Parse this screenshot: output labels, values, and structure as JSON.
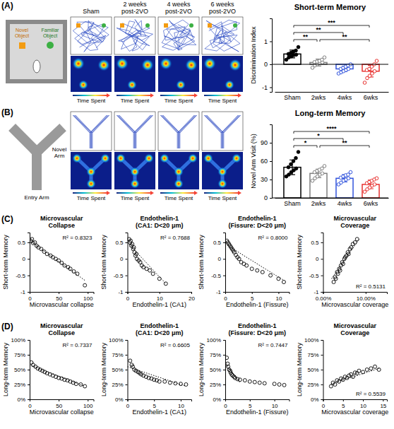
{
  "figure": {
    "panel_labels": [
      "(A)",
      "(B)",
      "(C)",
      "(D)"
    ],
    "groups": [
      "Sham",
      "2 weeks post-2VO",
      "4 weeks post-2VO",
      "6 weeks post-2VO"
    ],
    "time_spent": "Time Spent",
    "novel_object": "Novel Object",
    "familiar_object": "Familiar Object",
    "entry_arm": "Entry Arm",
    "novel_arm": "Novel Arm"
  },
  "chart_data": [
    {
      "type": "bar",
      "title": "Short-term Memory",
      "y_label": "Discrimination Index",
      "categories": [
        "Sham",
        "2wks",
        "4wks",
        "6wks"
      ],
      "values": [
        0.45,
        0.08,
        -0.2,
        -0.3
      ],
      "errors": [
        0.17,
        0.15,
        0.12,
        0.25
      ],
      "points": [
        [
          0.2,
          0.3,
          0.35,
          0.4,
          0.42,
          0.45,
          0.5,
          0.55,
          0.6,
          0.75
        ],
        [
          -0.15,
          -0.05,
          0,
          0.05,
          0.08,
          0.1,
          0.12,
          0.15,
          0.2,
          0.3
        ],
        [
          -0.4,
          -0.35,
          -0.3,
          -0.25,
          -0.2,
          -0.2,
          -0.15,
          -0.1,
          -0.05,
          0
        ],
        [
          -0.8,
          -0.6,
          -0.5,
          -0.4,
          -0.3,
          -0.25,
          -0.2,
          -0.1,
          0,
          0.15
        ]
      ],
      "colors": [
        "#000000",
        "#7f7f7f",
        "#3355dd",
        "#e8312f"
      ],
      "ylim": [
        -1.2,
        2.0
      ],
      "yticks": [
        -1,
        0,
        1
      ],
      "comparisons": [
        {
          "groups": [
            "Sham",
            "2wks"
          ],
          "label": "**"
        },
        {
          "groups": [
            "Sham",
            "4wks"
          ],
          "label": "**"
        },
        {
          "groups": [
            "Sham",
            "6wks"
          ],
          "label": "***"
        },
        {
          "groups": [
            "2wks",
            "6wks"
          ],
          "label": "**"
        }
      ]
    },
    {
      "type": "bar",
      "title": "Long-term Memory",
      "y_label": "Novel Arm Visit (%)",
      "categories": [
        "Sham",
        "2wks",
        "4wks",
        "6wks"
      ],
      "values": [
        50,
        40,
        32,
        22
      ],
      "errors": [
        12,
        7,
        6,
        7
      ],
      "points": [
        [
          35,
          38,
          42,
          45,
          48,
          50,
          55,
          60,
          65,
          75
        ],
        [
          28,
          32,
          35,
          38,
          40,
          42,
          44,
          46,
          48,
          52
        ],
        [
          22,
          25,
          28,
          30,
          32,
          33,
          35,
          37,
          38,
          42
        ],
        [
          10,
          14,
          17,
          20,
          22,
          24,
          26,
          28,
          30,
          32
        ]
      ],
      "colors": [
        "#000000",
        "#7f7f7f",
        "#3355dd",
        "#e8312f"
      ],
      "ylim": [
        0,
        120
      ],
      "yticks": [
        0,
        30,
        60,
        90
      ],
      "comparisons": [
        {
          "groups": [
            "Sham",
            "2wks"
          ],
          "label": "*"
        },
        {
          "groups": [
            "Sham",
            "4wks"
          ],
          "label": "*"
        },
        {
          "groups": [
            "Sham",
            "6wks"
          ],
          "label": "****"
        },
        {
          "groups": [
            "2wks",
            "6wks"
          ],
          "label": "**"
        }
      ]
    },
    {
      "type": "scatter",
      "title": "Microvascular Collapse",
      "x_label": "Microvascular collapse",
      "y_label": "Short-term Memory",
      "x": [
        2,
        4,
        6,
        9,
        12,
        15,
        20,
        25,
        30,
        36,
        40,
        45,
        50,
        55,
        60,
        66,
        70,
        76,
        82,
        95
      ],
      "y": [
        0.55,
        0.6,
        0.48,
        0.5,
        0.4,
        0.35,
        0.3,
        0.22,
        0.15,
        0.1,
        0.05,
        0,
        -0.05,
        -0.12,
        -0.2,
        -0.25,
        -0.3,
        -0.38,
        -0.45,
        -0.8
      ],
      "xlim": [
        0,
        110
      ],
      "xticks": [
        0,
        50,
        100
      ],
      "ylim": [
        -1,
        0.8
      ],
      "yticks": [
        -1,
        -0.5,
        0,
        0.5
      ],
      "annotation": "R² = 0.8323",
      "trend": {
        "x": [
          0,
          95
        ],
        "y": [
          0.55,
          -0.65
        ]
      },
      "marker": "circle",
      "line_style": "dotted"
    },
    {
      "type": "scatter",
      "title": "Endothelin-1 (CA1: D<20 μm)",
      "x_label": "Endothelin-1 (CA1)",
      "y_label": "Short-term Memory",
      "x": [
        0.5,
        0.8,
        1,
        1.2,
        1.5,
        1.8,
        2,
        2.2,
        2.5,
        2.8,
        3,
        3.5,
        4,
        4.5,
        5,
        6,
        7,
        8,
        10,
        12
      ],
      "y": [
        0.6,
        0.5,
        0.55,
        0.4,
        0.45,
        0.3,
        0.35,
        0.2,
        0.1,
        0.15,
        0,
        -0.05,
        -0.1,
        -0.2,
        -0.25,
        -0.3,
        -0.35,
        -0.45,
        -0.6,
        -0.75
      ],
      "xlim": [
        0,
        20
      ],
      "xticks": [
        0,
        10,
        20
      ],
      "ylim": [
        -1,
        0.8
      ],
      "yticks": [
        -1,
        -0.5,
        0,
        0.5
      ],
      "annotation": "R² = 0.7688",
      "trend": {
        "x": [
          0,
          12
        ],
        "y": [
          0.5,
          -0.75
        ]
      },
      "marker": "circle",
      "line_style": "dotted"
    },
    {
      "type": "scatter",
      "title": "Endothelin-1 (Fissure: D<20 μm)",
      "x_label": "Endothelin-1 (Fissure)",
      "y_label": "Short-term Memory",
      "x": [
        0.3,
        0.5,
        0.7,
        0.9,
        1.1,
        1.3,
        1.5,
        1.7,
        2,
        2.3,
        2.6,
        3,
        3.5,
        4,
        5,
        6,
        7,
        8.5,
        10,
        11
      ],
      "y": [
        0.55,
        0.5,
        0.45,
        0.4,
        0.35,
        0.3,
        0.25,
        0.2,
        0.12,
        0.05,
        0,
        -0.1,
        -0.15,
        -0.2,
        -0.3,
        -0.35,
        -0.4,
        -0.5,
        -0.6,
        -0.7
      ],
      "xlim": [
        0,
        12
      ],
      "xticks": [
        0,
        5,
        10
      ],
      "ylim": [
        -1,
        0.8
      ],
      "yticks": [
        -1,
        -0.5,
        0,
        0.5
      ],
      "annotation": "R² = 0.8000",
      "trend": {
        "x": [
          0,
          11
        ],
        "y": [
          0.45,
          -0.65
        ]
      },
      "marker": "circle",
      "line_style": "dotted"
    },
    {
      "type": "scatter",
      "title": "Microvascular Coverage",
      "x_label": "Microvascular coverage",
      "y_label": "Short-term Memory",
      "x": [
        2.5,
        2.8,
        3,
        3.3,
        3.5,
        3.8,
        4,
        4.2,
        4.5,
        4.7,
        5,
        5.2,
        5.5,
        5.8,
        6,
        6.3,
        6.6,
        7,
        7.5,
        8
      ],
      "y": [
        -0.7,
        -0.55,
        -0.6,
        -0.4,
        -0.45,
        -0.3,
        -0.35,
        -0.2,
        -0.1,
        -0.15,
        0,
        0.05,
        0.1,
        0.2,
        0.15,
        0.3,
        0.35,
        0.45,
        0.5,
        0.6
      ],
      "xlim": [
        0,
        15
      ],
      "xticks": [
        {
          "value": 0,
          "label": "0.00%"
        },
        {
          "value": 10,
          "label": "10.00%"
        }
      ],
      "ylim": [
        -1,
        0.8
      ],
      "yticks": [
        -1,
        -0.5,
        0,
        0.5
      ],
      "annotation": "R² = 0.5131",
      "trend": {
        "x": [
          2,
          8.5
        ],
        "y": [
          -0.6,
          0.6
        ]
      },
      "marker": "circle",
      "line_style": "dotted"
    },
    {
      "type": "scatter",
      "title": "Microvascular Collapse",
      "x_label": "Microvascular collapse",
      "y_label": "Long-term Memory",
      "x": [
        3,
        6,
        10,
        14,
        18,
        22,
        26,
        30,
        35,
        40,
        45,
        50,
        55,
        60,
        65,
        70,
        75,
        80,
        88,
        95
      ],
      "y": [
        62,
        58,
        55,
        52,
        50,
        48,
        46,
        44,
        42,
        40,
        38,
        36,
        35,
        33,
        32,
        30,
        28,
        26,
        25,
        22
      ],
      "xlim": [
        0,
        110
      ],
      "xticks": [
        0,
        50,
        100
      ],
      "ylim": [
        0,
        100
      ],
      "yticks": [
        {
          "value": 0,
          "label": "0%"
        },
        {
          "value": 25,
          "label": "25%"
        },
        {
          "value": 50,
          "label": "50%"
        },
        {
          "value": 75,
          "label": "75%"
        },
        {
          "value": 100,
          "label": "100%"
        }
      ],
      "annotation": "R² = 0.7337",
      "trend": {
        "x": [
          0,
          95
        ],
        "y": [
          58,
          22
        ]
      },
      "marker": "circle",
      "line_style": "dotted"
    },
    {
      "type": "scatter",
      "title": "Endothelin-1 (CA1: D<20 μm)",
      "x_label": "Endothelin-1 (CA1)",
      "y_label": "Long-term Memory",
      "x": [
        0.5,
        0.8,
        1,
        1.3,
        1.6,
        2,
        2.3,
        2.6,
        3,
        3.5,
        4,
        4.5,
        5,
        5.5,
        6,
        7,
        8,
        9,
        10,
        11
      ],
      "y": [
        65,
        58,
        55,
        50,
        48,
        46,
        44,
        42,
        40,
        38,
        36,
        35,
        33,
        32,
        30,
        30,
        28,
        27,
        26,
        25
      ],
      "xlim": [
        0,
        12
      ],
      "xticks": [
        0,
        5,
        10
      ],
      "ylim": [
        0,
        100
      ],
      "yticks": [
        {
          "value": 0,
          "label": "0%"
        },
        {
          "value": 25,
          "label": "25%"
        },
        {
          "value": 50,
          "label": "50%"
        },
        {
          "value": 75,
          "label": "75%"
        },
        {
          "value": 100,
          "label": "100%"
        }
      ],
      "annotation": "R² = 0.6605",
      "trend": {
        "x": [
          0,
          11
        ],
        "y": [
          55,
          22
        ]
      },
      "marker": "circle",
      "line_style": "dotted"
    },
    {
      "type": "scatter",
      "title": "Endothelin-1 (Fissure: D<20 μm)",
      "x_label": "Endothelin-1 (Fissure)",
      "y_label": "Long-term Memory",
      "x": [
        0.3,
        0.5,
        0.6,
        0.8,
        1,
        1.1,
        1.3,
        1.5,
        1.8,
        2,
        2.5,
        3,
        4,
        5,
        6,
        7,
        8,
        10,
        11,
        12
      ],
      "y": [
        70,
        60,
        55,
        50,
        48,
        45,
        42,
        40,
        38,
        36,
        34,
        33,
        32,
        30,
        29,
        28,
        27,
        26,
        25,
        24
      ],
      "xlim": [
        0,
        13
      ],
      "xticks": [
        0,
        5,
        10
      ],
      "ylim": [
        0,
        100
      ],
      "yticks": [
        {
          "value": 0,
          "label": "0%"
        },
        {
          "value": 25,
          "label": "25%"
        },
        {
          "value": 50,
          "label": "50%"
        },
        {
          "value": 75,
          "label": "75%"
        },
        {
          "value": 100,
          "label": "100%"
        }
      ],
      "annotation": "R² = 0.7447",
      "trend": {
        "x": [
          0,
          3
        ],
        "y": [
          60,
          28
        ]
      },
      "marker": "circle",
      "line_style": "dotted"
    },
    {
      "type": "scatter",
      "title": "Microvascular Coverage",
      "x_label": "Microvascular coverage",
      "y_label": "Long-term Memory",
      "x": [
        2,
        2.5,
        3,
        3.5,
        4,
        4.5,
        5,
        5.5,
        6,
        6.5,
        7,
        7.5,
        8,
        8.5,
        9,
        10,
        11,
        12,
        13,
        14
      ],
      "y": [
        22,
        28,
        25,
        32,
        30,
        35,
        33,
        38,
        36,
        40,
        42,
        38,
        45,
        44,
        48,
        46,
        50,
        52,
        55,
        50
      ],
      "xlim": [
        0,
        16
      ],
      "xticks": [
        0,
        5,
        10,
        15
      ],
      "ylim": [
        0,
        100
      ],
      "yticks": [
        {
          "value": 0,
          "label": "0%"
        },
        {
          "value": 25,
          "label": "25%"
        },
        {
          "value": 50,
          "label": "50%"
        },
        {
          "value": 75,
          "label": "75%"
        },
        {
          "value": 100,
          "label": "100%"
        }
      ],
      "annotation": "R² = 0.5539",
      "trend": {
        "x": [
          2,
          14
        ],
        "y": [
          26,
          52
        ]
      },
      "marker": "circle",
      "line_style": "dotted"
    }
  ]
}
